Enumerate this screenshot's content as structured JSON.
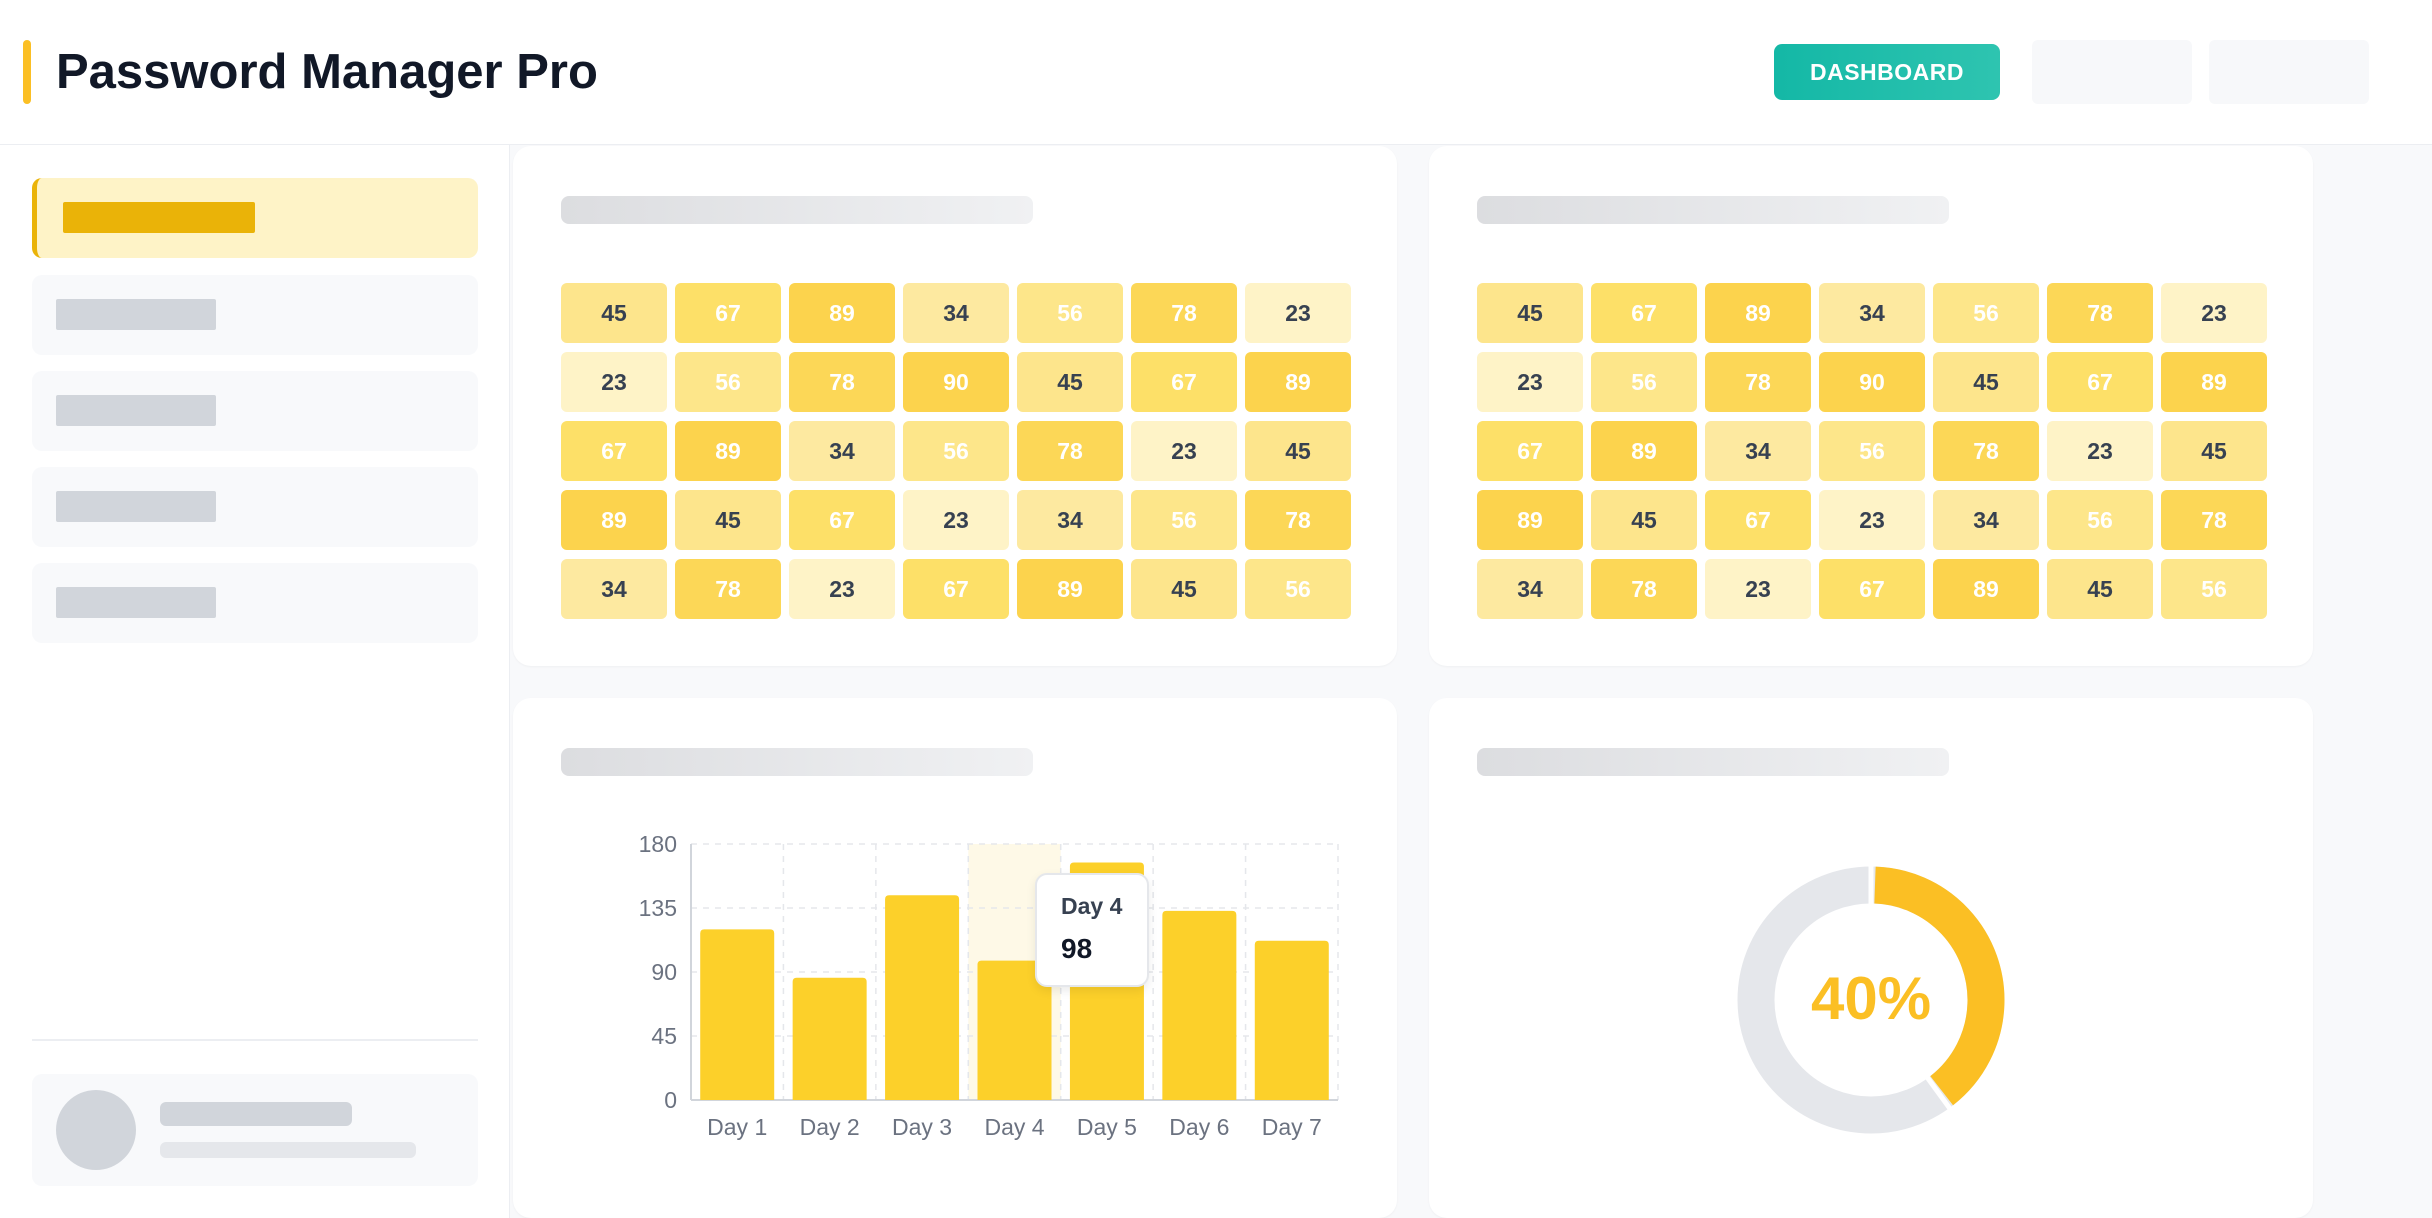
{
  "header": {
    "title": "Password Manager Pro",
    "dashboard_label": "DASHBOARD",
    "accent_color": "#fbbf24",
    "button_color": "#14b8a6"
  },
  "sidebar": {
    "active_index": 0,
    "item_count": 5
  },
  "heatmaps": [
    {
      "rows": [
        [
          45,
          67,
          89,
          34,
          56,
          78,
          23
        ],
        [
          23,
          56,
          78,
          90,
          45,
          67,
          89
        ],
        [
          67,
          89,
          34,
          56,
          78,
          23,
          45
        ],
        [
          89,
          45,
          67,
          23,
          34,
          56,
          78
        ],
        [
          34,
          78,
          23,
          67,
          89,
          45,
          56
        ]
      ]
    },
    {
      "rows": [
        [
          45,
          67,
          89,
          34,
          56,
          78,
          23
        ],
        [
          23,
          56,
          78,
          90,
          45,
          67,
          89
        ],
        [
          67,
          89,
          34,
          56,
          78,
          23,
          45
        ],
        [
          89,
          45,
          67,
          23,
          34,
          56,
          78
        ],
        [
          34,
          78,
          23,
          67,
          89,
          45,
          56
        ]
      ]
    }
  ],
  "chart_data": {
    "type": "bar",
    "categories": [
      "Day 1",
      "Day 2",
      "Day 3",
      "Day 4",
      "Day 5",
      "Day 6",
      "Day 7"
    ],
    "values": [
      120,
      86,
      144,
      98,
      167,
      133,
      112
    ],
    "ylim": [
      0,
      180
    ],
    "yticks": [
      0,
      45,
      90,
      135,
      180
    ],
    "bar_color": "#fcd02a",
    "grid": true,
    "highlight_category": "Day 4"
  },
  "tooltip": {
    "label": "Day 4",
    "value": "98"
  },
  "progress": {
    "fraction": 0.4,
    "label": "40%",
    "color": "#fbbf24",
    "track_color": "#e5e7eb"
  }
}
